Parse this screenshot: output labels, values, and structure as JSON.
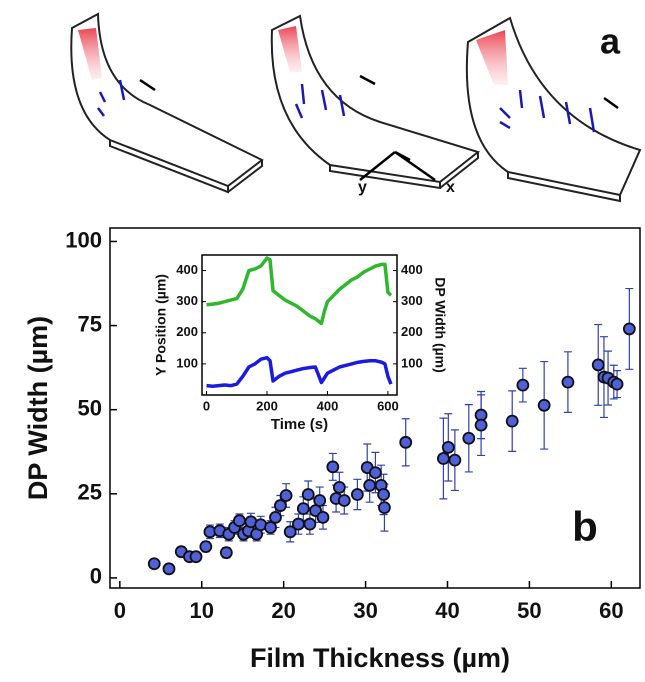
{
  "diagram": {
    "panel_label": "a",
    "axis_labels": [
      "y",
      "x"
    ]
  },
  "chart_data": [
    {
      "type": "scatter",
      "panel_label": "b",
      "x_label": "Film Thickness (µm)",
      "y_label": "DP Width (µm)",
      "x": [
        4.2,
        6,
        7.5,
        8.5,
        9.3,
        10.5,
        11,
        12.2,
        13,
        13.3,
        14,
        14.6,
        15.1,
        15.7,
        16,
        16.7,
        17.2,
        18.4,
        19,
        19.6,
        20.3,
        20.8,
        21.8,
        22.4,
        23,
        23.2,
        23.9,
        24.4,
        24.8,
        26,
        26.4,
        26.8,
        27.4,
        29,
        30.2,
        30.5,
        31.2,
        31.9,
        32.3,
        32.2,
        34.9,
        39.5,
        40.1,
        40.9,
        42.6,
        44.1,
        44.1,
        47.9,
        49.2,
        51.8,
        54.7,
        58.4,
        59.1,
        59.6,
        60.3,
        60.7,
        62.2
      ],
      "values": [
        4.2,
        2.7,
        7.8,
        6.3,
        6.3,
        9.3,
        13.7,
        14,
        7.5,
        13,
        15,
        17,
        13,
        14,
        16.7,
        13,
        15.8,
        15,
        18,
        21.5,
        24.5,
        13.7,
        16,
        20.6,
        24.8,
        16,
        20,
        23,
        18,
        33,
        23.6,
        26.9,
        23,
        24.8,
        32.8,
        27.5,
        31.3,
        27.5,
        20.9,
        24.8,
        40.3,
        35.5,
        38.8,
        35,
        41.5,
        48.4,
        45.4,
        46.6,
        57.3,
        51.3,
        58.2,
        63.3,
        59.7,
        59.4,
        58.2,
        57.6,
        74
      ],
      "errors": [
        1,
        1,
        1,
        1,
        1,
        1.5,
        2,
        2,
        1.5,
        2,
        2,
        2,
        2,
        2,
        2.5,
        2,
        2.5,
        2,
        3,
        3,
        3.5,
        3,
        3,
        3.5,
        4,
        3,
        3.5,
        4,
        3.5,
        4,
        4,
        4.5,
        4,
        4.5,
        7,
        5,
        6,
        6,
        7,
        6,
        7,
        12,
        10,
        9,
        10,
        7,
        9,
        9,
        5,
        13,
        9,
        12,
        12,
        8,
        5,
        4,
        12
      ],
      "color": "#5060d8",
      "error_color": "#3040b0",
      "xlim": [
        -1.2,
        63.5
      ],
      "ylim": [
        -3,
        104
      ],
      "xticks": [
        0,
        10,
        20,
        30,
        40,
        50,
        60
      ],
      "yticks": [
        0,
        25,
        50,
        75,
        100
      ]
    },
    {
      "type": "line",
      "x_label": "Time (s)",
      "y_label": "Y Position (µm)",
      "y2_label": "DP Width (µm)",
      "x": [
        0,
        20,
        40,
        60,
        80,
        100,
        120,
        140,
        160,
        180,
        200,
        210,
        220,
        240,
        260,
        280,
        300,
        320,
        340,
        360,
        380,
        390,
        400,
        420,
        440,
        460,
        480,
        500,
        520,
        540,
        560,
        580,
        590,
        600,
        610
      ],
      "series": [
        {
          "color": "#2db82d",
          "values": [
            290,
            292,
            295,
            300,
            305,
            310,
            340,
            400,
            405,
            415,
            440,
            435,
            335,
            320,
            305,
            295,
            285,
            270,
            255,
            245,
            230,
            270,
            300,
            320,
            340,
            355,
            370,
            380,
            395,
            405,
            415,
            420,
            420,
            330,
            320
          ]
        },
        {
          "color": "#1a1ae0",
          "axis": "y2",
          "values": [
            30,
            28,
            30,
            32,
            30,
            35,
            60,
            90,
            100,
            115,
            120,
            110,
            45,
            60,
            70,
            75,
            80,
            85,
            88,
            90,
            40,
            55,
            70,
            80,
            90,
            95,
            100,
            105,
            108,
            110,
            110,
            105,
            100,
            60,
            35
          ]
        }
      ],
      "xlim": [
        -15,
        630
      ],
      "ylim": [
        0,
        450
      ],
      "y2lim": [
        0,
        450
      ],
      "xticks": [
        0,
        200,
        400,
        600
      ],
      "yticks": [
        100,
        200,
        300,
        400
      ],
      "y2ticks": [
        100,
        200,
        300,
        400
      ]
    }
  ]
}
